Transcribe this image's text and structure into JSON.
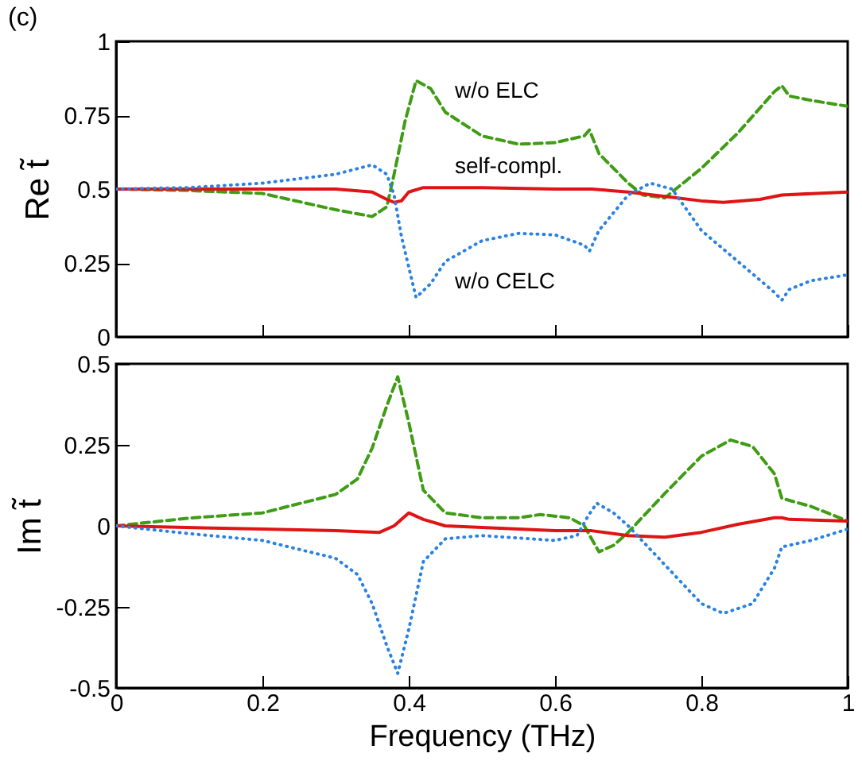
{
  "chart_data": [
    {
      "type": "line",
      "annotations": [
        "(c)"
      ],
      "ylabel": "Re t̃",
      "xlim": [
        0,
        1
      ],
      "xticks": [
        0,
        0.2,
        0.4,
        0.6,
        0.8,
        1
      ],
      "ylim": [
        0,
        1
      ],
      "yticks": [
        0,
        0.25,
        0.5,
        0.75,
        1
      ],
      "tick_labels": "y",
      "grid": false,
      "series": [
        {
          "name": "w/o ELC",
          "color": "#3f9c14",
          "line_style": "dashed",
          "x": [
            0,
            0.1,
            0.2,
            0.3,
            0.35,
            0.37,
            0.38,
            0.395,
            0.41,
            0.43,
            0.45,
            0.5,
            0.55,
            0.6,
            0.64,
            0.647,
            0.66,
            0.7,
            0.72,
            0.75,
            0.8,
            0.85,
            0.9,
            0.91,
            0.92,
            0.95,
            1
          ],
          "values": [
            0.5,
            0.495,
            0.485,
            0.43,
            0.407,
            0.44,
            0.55,
            0.73,
            0.867,
            0.84,
            0.76,
            0.68,
            0.652,
            0.657,
            0.68,
            0.7,
            0.62,
            0.52,
            0.48,
            0.47,
            0.57,
            0.69,
            0.83,
            0.85,
            0.815,
            0.8,
            0.78
          ]
        },
        {
          "name": "self-compl.",
          "color": "#e01414",
          "line_style": "solid",
          "x": [
            0,
            0.1,
            0.2,
            0.3,
            0.35,
            0.37,
            0.38,
            0.39,
            0.4,
            0.42,
            0.45,
            0.5,
            0.6,
            0.65,
            0.7,
            0.75,
            0.8,
            0.83,
            0.88,
            0.91,
            1
          ],
          "values": [
            0.5,
            0.5,
            0.5,
            0.5,
            0.49,
            0.465,
            0.455,
            0.46,
            0.49,
            0.505,
            0.505,
            0.505,
            0.5,
            0.5,
            0.49,
            0.475,
            0.46,
            0.455,
            0.465,
            0.48,
            0.49
          ]
        },
        {
          "name": "w/o CELC",
          "color": "#2a82e0",
          "line_style": "dotted",
          "x": [
            0,
            0.1,
            0.2,
            0.3,
            0.35,
            0.37,
            0.38,
            0.39,
            0.41,
            0.43,
            0.45,
            0.5,
            0.55,
            0.6,
            0.64,
            0.647,
            0.66,
            0.7,
            0.73,
            0.76,
            0.8,
            0.85,
            0.9,
            0.91,
            0.92,
            0.95,
            1
          ],
          "values": [
            0.5,
            0.505,
            0.52,
            0.55,
            0.582,
            0.55,
            0.48,
            0.34,
            0.133,
            0.18,
            0.255,
            0.325,
            0.35,
            0.345,
            0.31,
            0.29,
            0.36,
            0.48,
            0.52,
            0.5,
            0.36,
            0.255,
            0.15,
            0.124,
            0.16,
            0.19,
            0.21
          ]
        }
      ]
    },
    {
      "type": "line",
      "xlabel": "Frequency (THz)",
      "ylabel": "Im t̃",
      "xlim": [
        0,
        1
      ],
      "xticks": [
        0,
        0.2,
        0.4,
        0.6,
        0.8,
        1
      ],
      "ylim": [
        -0.5,
        0.5
      ],
      "yticks": [
        -0.5,
        -0.25,
        0,
        0.25,
        0.5
      ],
      "grid": false,
      "series": [
        {
          "color": "#3f9c14",
          "line_style": "dashed",
          "x": [
            0,
            0.1,
            0.2,
            0.3,
            0.33,
            0.35,
            0.37,
            0.385,
            0.4,
            0.42,
            0.45,
            0.5,
            0.55,
            0.58,
            0.62,
            0.64,
            0.66,
            0.68,
            0.7,
            0.75,
            0.8,
            0.84,
            0.87,
            0.9,
            0.91,
            0.95,
            1
          ],
          "values": [
            0,
            0.024,
            0.04,
            0.097,
            0.145,
            0.24,
            0.37,
            0.46,
            0.32,
            0.11,
            0.04,
            0.025,
            0.025,
            0.035,
            0.025,
            0,
            -0.08,
            -0.06,
            -0.02,
            0.1,
            0.215,
            0.265,
            0.245,
            0.16,
            0.085,
            0.06,
            0.015
          ]
        },
        {
          "color": "#e01414",
          "line_style": "solid",
          "x": [
            0,
            0.2,
            0.3,
            0.36,
            0.38,
            0.4,
            0.42,
            0.45,
            0.5,
            0.6,
            0.65,
            0.7,
            0.75,
            0.8,
            0.85,
            0.9,
            0.91,
            0.92,
            1
          ],
          "values": [
            0,
            -0.01,
            -0.015,
            -0.02,
            0,
            0.04,
            0.02,
            0,
            -0.005,
            -0.015,
            -0.015,
            -0.03,
            -0.035,
            -0.02,
            0.005,
            0.025,
            0.025,
            0.02,
            0.015
          ]
        },
        {
          "color": "#2a82e0",
          "line_style": "dotted",
          "x": [
            0,
            0.1,
            0.2,
            0.3,
            0.33,
            0.35,
            0.37,
            0.385,
            0.4,
            0.42,
            0.45,
            0.5,
            0.6,
            0.63,
            0.645,
            0.657,
            0.68,
            0.7,
            0.75,
            0.8,
            0.83,
            0.87,
            0.9,
            0.91,
            0.95,
            1
          ],
          "values": [
            0,
            -0.024,
            -0.045,
            -0.1,
            -0.15,
            -0.24,
            -0.37,
            -0.455,
            -0.32,
            -0.11,
            -0.04,
            -0.03,
            -0.045,
            -0.03,
            0.03,
            0.07,
            0.04,
            0,
            -0.12,
            -0.24,
            -0.27,
            -0.24,
            -0.13,
            -0.065,
            -0.045,
            -0.01
          ]
        }
      ]
    }
  ]
}
